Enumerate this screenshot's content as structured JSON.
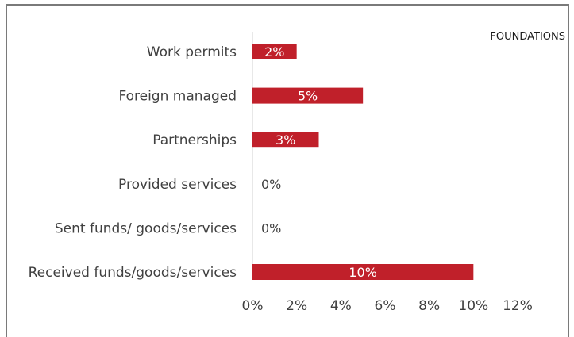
{
  "chart_data": {
    "type": "bar",
    "orientation": "horizontal",
    "title": "",
    "legend": {
      "entries": [
        "FOUNDATIONS"
      ],
      "placement": "top-right"
    },
    "categories": [
      "Work permits",
      "Foreign managed",
      "Partnerships",
      "Provided services",
      "Sent funds/ goods/services",
      "Received funds/goods/services"
    ],
    "series": [
      {
        "name": "FOUNDATIONS",
        "values": [
          0.02,
          0.05,
          0.03,
          0,
          0,
          0.1
        ],
        "labels": [
          "2%",
          "5%",
          "3%",
          "0%",
          "0%",
          "10%"
        ],
        "color": "#c0202a"
      }
    ],
    "xlim": [
      0,
      0.12
    ],
    "x_ticks": [
      "0%",
      "2%",
      "4%",
      "6%",
      "8%",
      "10%",
      "12%"
    ],
    "xlabel": "",
    "ylabel": "",
    "grid": false
  }
}
